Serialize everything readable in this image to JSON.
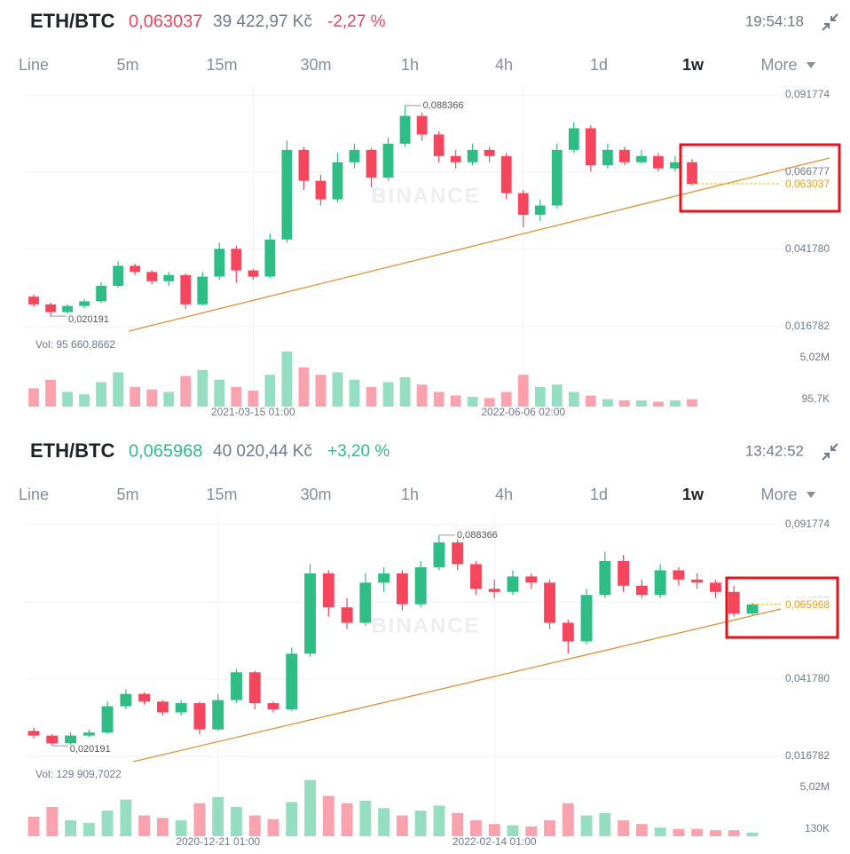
{
  "timeframes": [
    "Line",
    "5m",
    "15m",
    "30m",
    "1h",
    "4h",
    "1d",
    "1w",
    "More"
  ],
  "chart_data": [
    {
      "type": "candlestick",
      "pair": "ETH/BTC",
      "price_color": "#e8475f",
      "fiat": "39 422,97 Kč",
      "change": "-2,27 %",
      "time": "19:54:18",
      "watermark": "BINANCE",
      "last_price": {
        "value": 0.063037,
        "label": "0,063037"
      },
      "high_label": {
        "value": 0.088366,
        "label": "0,088366"
      },
      "low_label": {
        "value": 0.020191,
        "label": "0,020191"
      },
      "volume_label": "Vol: 95 660,8662",
      "ylim": [
        0.01391,
        0.09522
      ],
      "yticks": [
        {
          "value": 0.091774,
          "label": "0,091774"
        },
        {
          "value": 0.066777,
          "label": "0,066777"
        },
        {
          "value": 0.04178,
          "label": "0,041780"
        },
        {
          "value": 0.016782,
          "label": "0,016782"
        }
      ],
      "vlim": [
        0,
        5.3
      ],
      "vticks": [
        {
          "value": 5.02,
          "label": "5,02M"
        },
        {
          "value": 0.0957,
          "label": "95,7K"
        }
      ],
      "up_color": "#2ebd85",
      "down_color": "#f6465d",
      "categories": [
        null,
        null,
        null,
        null,
        null,
        null,
        null,
        null,
        null,
        null,
        null,
        null,
        null,
        "2021-03-15 01:00",
        null,
        null,
        null,
        null,
        null,
        null,
        null,
        null,
        null,
        null,
        null,
        null,
        null,
        null,
        null,
        "2022-06-06 02:00",
        null,
        null,
        null,
        null,
        null,
        null,
        null,
        null,
        null,
        null
      ],
      "open": [
        0.0265,
        0.024,
        0.0215,
        0.0235,
        0.025,
        0.03,
        0.0365,
        0.0345,
        0.0315,
        0.0335,
        0.024,
        0.033,
        0.042,
        0.035,
        0.033,
        0.045,
        0.074,
        0.064,
        0.058,
        0.07,
        0.074,
        0.065,
        0.076,
        0.085,
        0.079,
        0.072,
        0.07,
        0.074,
        0.072,
        0.06,
        0.053,
        0.056,
        0.074,
        0.081,
        0.069,
        0.074,
        0.07,
        0.072,
        0.068,
        0.07
      ],
      "high": [
        0.0272,
        0.0245,
        0.024,
        0.0258,
        0.0312,
        0.038,
        0.0372,
        0.035,
        0.0345,
        0.034,
        0.0345,
        0.044,
        0.043,
        0.0355,
        0.047,
        0.077,
        0.075,
        0.066,
        0.073,
        0.076,
        0.0745,
        0.078,
        0.088366,
        0.086,
        0.08,
        0.074,
        0.076,
        0.075,
        0.073,
        0.061,
        0.058,
        0.076,
        0.083,
        0.082,
        0.076,
        0.075,
        0.074,
        0.073,
        0.072,
        0.071
      ],
      "low": [
        0.0232,
        0.020191,
        0.021,
        0.0228,
        0.0245,
        0.0295,
        0.0335,
        0.0305,
        0.03,
        0.0225,
        0.0235,
        0.032,
        0.031,
        0.032,
        0.0325,
        0.044,
        0.061,
        0.056,
        0.057,
        0.068,
        0.062,
        0.064,
        0.075,
        0.077,
        0.07,
        0.068,
        0.069,
        0.07,
        0.058,
        0.049,
        0.051,
        0.055,
        0.073,
        0.067,
        0.068,
        0.069,
        0.0695,
        0.067,
        0.067,
        0.0625
      ],
      "close": [
        0.024,
        0.0215,
        0.0235,
        0.025,
        0.03,
        0.0365,
        0.0345,
        0.0315,
        0.0335,
        0.024,
        0.033,
        0.042,
        0.035,
        0.033,
        0.045,
        0.074,
        0.064,
        0.058,
        0.07,
        0.074,
        0.065,
        0.076,
        0.085,
        0.079,
        0.072,
        0.07,
        0.074,
        0.072,
        0.06,
        0.053,
        0.056,
        0.074,
        0.081,
        0.069,
        0.074,
        0.07,
        0.072,
        0.068,
        0.07,
        0.063037
      ],
      "volumes": [
        1.5,
        2.2,
        1.2,
        1.0,
        2.0,
        2.8,
        1.6,
        1.4,
        1.2,
        2.5,
        3.0,
        2.2,
        1.6,
        1.3,
        2.6,
        4.5,
        3.2,
        2.6,
        2.8,
        2.2,
        1.6,
        2.0,
        2.4,
        1.8,
        1.2,
        0.9,
        0.8,
        0.7,
        1.2,
        2.6,
        1.6,
        1.8,
        1.2,
        0.9,
        0.6,
        0.5,
        0.5,
        0.4,
        0.5,
        0.6
      ]
    },
    {
      "type": "candlestick",
      "pair": "ETH/BTC",
      "price_color": "#2ebd85",
      "fiat": "40 020,44 Kč",
      "change": "+3,20 %",
      "time": "13:42:52",
      "watermark": "BINANCE",
      "last_price": {
        "value": 0.065968,
        "label": "0,065968"
      },
      "high_label": {
        "value": 0.088366,
        "label": "0,088366"
      },
      "low_label": {
        "value": 0.020191,
        "label": "0,020191"
      },
      "volume_label": "Vol: 129 909,7022",
      "ylim": [
        0.01391,
        0.09522
      ],
      "yticks": [
        {
          "value": 0.091774,
          "label": "0,091774"
        },
        {
          "value": 0.066777,
          "label": "0,066777"
        },
        {
          "value": 0.04178,
          "label": "0,041780"
        },
        {
          "value": 0.016782,
          "label": "0,016782"
        }
      ],
      "vlim": [
        0,
        5.3
      ],
      "vticks": [
        {
          "value": 5.02,
          "label": "5,02M"
        },
        {
          "value": 0.13,
          "label": "130K"
        }
      ],
      "up_color": "#2ebd85",
      "down_color": "#f6465d",
      "categories": [
        null,
        null,
        null,
        null,
        null,
        null,
        null,
        null,
        null,
        null,
        "2020-12-21 01:00",
        null,
        null,
        null,
        null,
        null,
        null,
        null,
        null,
        null,
        null,
        null,
        null,
        null,
        null,
        "2022-02-14 01:00",
        null,
        null,
        null,
        null,
        null,
        null,
        null,
        null,
        null,
        null,
        null,
        null,
        null,
        null
      ],
      "open": [
        0.025,
        0.0235,
        0.021,
        0.0235,
        0.0245,
        0.033,
        0.037,
        0.0345,
        0.031,
        0.034,
        0.0255,
        0.035,
        0.044,
        0.034,
        0.032,
        0.05,
        0.076,
        0.065,
        0.06,
        0.073,
        0.076,
        0.066,
        0.078,
        0.086,
        0.079,
        0.071,
        0.07,
        0.075,
        0.073,
        0.06,
        0.054,
        0.069,
        0.08,
        0.072,
        0.069,
        0.077,
        0.074,
        0.073,
        0.07,
        0.063
      ],
      "high": [
        0.026,
        0.024,
        0.0245,
        0.0255,
        0.0345,
        0.0385,
        0.0375,
        0.035,
        0.035,
        0.0345,
        0.037,
        0.045,
        0.0445,
        0.0345,
        0.052,
        0.079,
        0.077,
        0.068,
        0.076,
        0.078,
        0.077,
        0.08,
        0.088366,
        0.087,
        0.08,
        0.074,
        0.077,
        0.076,
        0.074,
        0.061,
        0.071,
        0.083,
        0.082,
        0.074,
        0.079,
        0.078,
        0.076,
        0.074,
        0.072,
        0.0665
      ],
      "low": [
        0.0225,
        0.020191,
        0.0205,
        0.023,
        0.024,
        0.032,
        0.0335,
        0.03,
        0.03,
        0.024,
        0.025,
        0.034,
        0.032,
        0.031,
        0.0315,
        0.049,
        0.062,
        0.058,
        0.059,
        0.07,
        0.064,
        0.065,
        0.077,
        0.077,
        0.069,
        0.068,
        0.069,
        0.071,
        0.058,
        0.05,
        0.053,
        0.068,
        0.07,
        0.068,
        0.068,
        0.072,
        0.071,
        0.068,
        0.062,
        0.0625
      ],
      "close": [
        0.0235,
        0.021,
        0.0235,
        0.0245,
        0.033,
        0.037,
        0.0345,
        0.031,
        0.034,
        0.0255,
        0.035,
        0.044,
        0.034,
        0.032,
        0.05,
        0.076,
        0.065,
        0.06,
        0.073,
        0.076,
        0.066,
        0.078,
        0.086,
        0.079,
        0.071,
        0.07,
        0.075,
        0.073,
        0.06,
        0.054,
        0.069,
        0.08,
        0.072,
        0.069,
        0.077,
        0.074,
        0.073,
        0.07,
        0.063,
        0.065968
      ],
      "volumes": [
        1.6,
        2.4,
        1.3,
        1.1,
        2.1,
        3.0,
        1.7,
        1.5,
        1.3,
        2.7,
        3.2,
        2.4,
        1.7,
        1.4,
        2.8,
        4.6,
        3.3,
        2.7,
        2.9,
        2.3,
        1.7,
        2.1,
        2.5,
        1.9,
        1.3,
        1.0,
        0.9,
        0.8,
        1.3,
        2.7,
        1.7,
        1.9,
        1.3,
        1.0,
        0.7,
        0.6,
        0.6,
        0.5,
        0.5,
        0.3
      ]
    }
  ]
}
